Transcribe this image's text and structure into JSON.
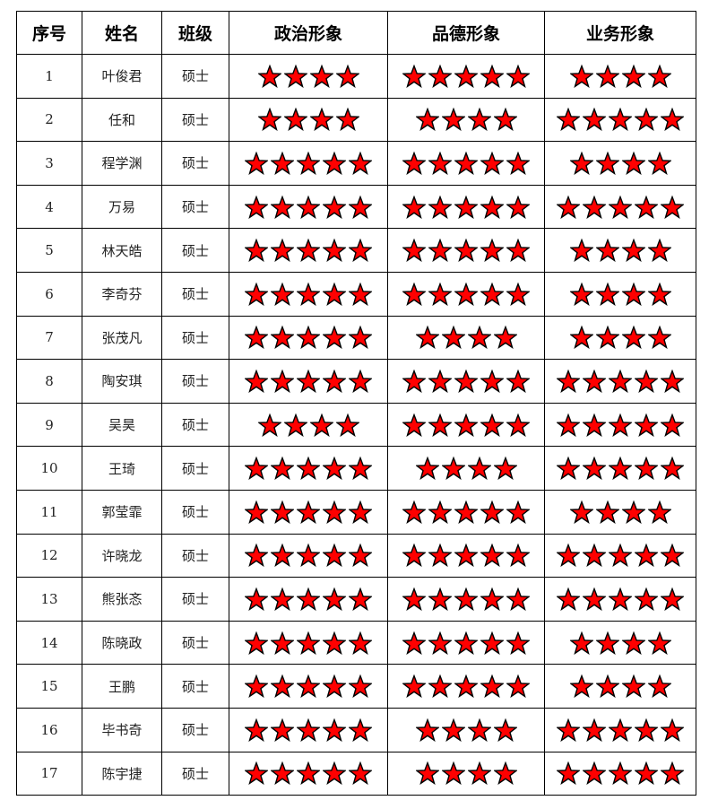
{
  "colors": {
    "star_fill": "#ff0000",
    "star_stroke": "#000000"
  },
  "star_icon": "five-pointed-star",
  "headers": [
    "序号",
    "姓名",
    "班级",
    "政治形象",
    "品德形象",
    "业务形象"
  ],
  "rows": [
    {
      "no": "1",
      "name": "叶俊君",
      "class": "硕士",
      "political": 4,
      "moral": 5,
      "professional": 4
    },
    {
      "no": "2",
      "name": "任和",
      "class": "硕士",
      "political": 4,
      "moral": 4,
      "professional": 5
    },
    {
      "no": "3",
      "name": "程学渊",
      "class": "硕士",
      "political": 5,
      "moral": 5,
      "professional": 4
    },
    {
      "no": "4",
      "name": "万易",
      "class": "硕士",
      "political": 5,
      "moral": 5,
      "professional": 5
    },
    {
      "no": "5",
      "name": "林天皓",
      "class": "硕士",
      "political": 5,
      "moral": 5,
      "professional": 4
    },
    {
      "no": "6",
      "name": "李奇芬",
      "class": "硕士",
      "political": 5,
      "moral": 5,
      "professional": 4
    },
    {
      "no": "7",
      "name": "张茂凡",
      "class": "硕士",
      "political": 5,
      "moral": 4,
      "professional": 4
    },
    {
      "no": "8",
      "name": "陶安琪",
      "class": "硕士",
      "political": 5,
      "moral": 5,
      "professional": 5
    },
    {
      "no": "9",
      "name": "吴昊",
      "class": "硕士",
      "political": 4,
      "moral": 5,
      "professional": 5
    },
    {
      "no": "10",
      "name": "王琦",
      "class": "硕士",
      "political": 5,
      "moral": 4,
      "professional": 5
    },
    {
      "no": "11",
      "name": "郭莹霏",
      "class": "硕士",
      "political": 5,
      "moral": 5,
      "professional": 4
    },
    {
      "no": "12",
      "name": "许晓龙",
      "class": "硕士",
      "political": 5,
      "moral": 5,
      "professional": 5
    },
    {
      "no": "13",
      "name": "熊张忞",
      "class": "硕士",
      "political": 5,
      "moral": 5,
      "professional": 5
    },
    {
      "no": "14",
      "name": "陈晓政",
      "class": "硕士",
      "political": 5,
      "moral": 5,
      "professional": 4
    },
    {
      "no": "15",
      "name": "王鹏",
      "class": "硕士",
      "political": 5,
      "moral": 5,
      "professional": 4
    },
    {
      "no": "16",
      "name": "毕书奇",
      "class": "硕士",
      "political": 5,
      "moral": 4,
      "professional": 5
    },
    {
      "no": "17",
      "name": "陈宇捷",
      "class": "硕士",
      "political": 5,
      "moral": 4,
      "professional": 5
    }
  ]
}
